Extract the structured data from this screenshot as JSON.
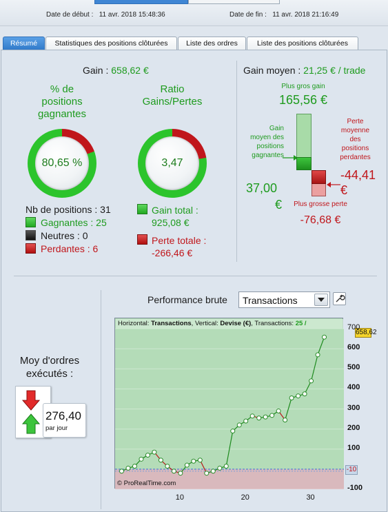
{
  "header": {
    "start_label": "Date de début :",
    "start_value": "11 avr. 2018 15:48:36",
    "end_label": "Date de fin :",
    "end_value": "11 avr. 2018 21:16:49"
  },
  "tabs": [
    {
      "label": "Résumé",
      "active": true
    },
    {
      "label": "Statistiques des positions clôturées",
      "active": false
    },
    {
      "label": "Liste des ordres",
      "active": false
    },
    {
      "label": "Liste des positions clôturées",
      "active": false
    }
  ],
  "gain": {
    "label": "Gain :",
    "value": "658,62 €"
  },
  "winning_pct": {
    "title_l1": "% de",
    "title_l2": "positions",
    "title_l3": "gagnantes",
    "value": "80,65 %",
    "fraction": 0.8065
  },
  "ratio": {
    "title_l1": "Ratio",
    "title_l2": "Gains/Pertes",
    "value": "3,47",
    "fraction": 0.776
  },
  "counts": {
    "total": "Nb de positions : 31",
    "winners": "Gagnantes : 25",
    "neutral": "Neutres : 0",
    "losers": "Perdantes : 6"
  },
  "totals": {
    "gain_total_l1": "Gain total :",
    "gain_total_l2": "925,08 €",
    "loss_total_l1": "Perte totale :",
    "loss_total_l2": "-266,46 €"
  },
  "avg_gain": {
    "label": "Gain moyen :",
    "value": "21,25 € / trade",
    "biggest_gain_label": "Plus gros gain",
    "biggest_gain_value": "165,56 €",
    "avg_win_label_l1": "Gain",
    "avg_win_label_l2": "moyen des",
    "avg_win_label_l3": "positions",
    "avg_win_label_l4": "gagnantes",
    "avg_win_value_l1": "37,00",
    "avg_win_value_l2": "€",
    "avg_loss_label_l1": "Perte",
    "avg_loss_label_l2": "moyenne",
    "avg_loss_label_l3": "des",
    "avg_loss_label_l4": "positions",
    "avg_loss_label_l5": "perdantes",
    "avg_loss_value_l1": "-44,41",
    "avg_loss_value_l2": "€",
    "biggest_loss_label": "Plus grosse perte",
    "biggest_loss_value": "-76,68 €"
  },
  "orders": {
    "title_l1": "Moy d'ordres",
    "title_l2": "exécutés :",
    "value": "276,40",
    "unit": "par jour"
  },
  "performance": {
    "label": "Performance brute",
    "select_value": "Transactions"
  },
  "chart_data": {
    "type": "line",
    "header_prefix": "Horizontal: ",
    "header_h": "Transactions",
    "header_mid": ", Vertical: ",
    "header_v": "Devise (€)",
    "header_tx": ", Transactions: ",
    "header_count": "25 /",
    "watermark": "© ProRealTime.com",
    "current_value": "658,62",
    "zero_marker": "-10",
    "x": [
      1,
      2,
      3,
      4,
      5,
      6,
      7,
      8,
      9,
      10,
      11,
      12,
      13,
      14,
      15,
      16,
      17,
      18,
      19,
      20,
      21,
      22,
      23,
      24,
      25,
      26,
      27,
      28,
      29,
      30,
      31,
      32
    ],
    "values": [
      -10,
      5,
      15,
      50,
      70,
      85,
      45,
      15,
      -10,
      -20,
      20,
      40,
      45,
      -20,
      -10,
      5,
      15,
      190,
      220,
      240,
      265,
      255,
      260,
      268,
      290,
      245,
      355,
      365,
      375,
      440,
      570,
      658
    ],
    "xlim": [
      0,
      35
    ],
    "ylim": [
      -100,
      700
    ],
    "yticks": [
      700,
      600,
      500,
      400,
      300,
      200,
      100,
      -100
    ],
    "yticks_bold": [
      600,
      500,
      400,
      300,
      200,
      100,
      -100
    ],
    "xticks": [
      10,
      20,
      30
    ],
    "colors": {
      "up": "#1d8a1d",
      "down": "#b81a1a",
      "marker": "#2a8c2a",
      "fill_pos": "#b4dcb8",
      "fill_neg": "#d9b9bd"
    }
  },
  "colors": {
    "green": "#1e9b1e",
    "red": "#c0161b",
    "accent": "#2f78c8"
  }
}
